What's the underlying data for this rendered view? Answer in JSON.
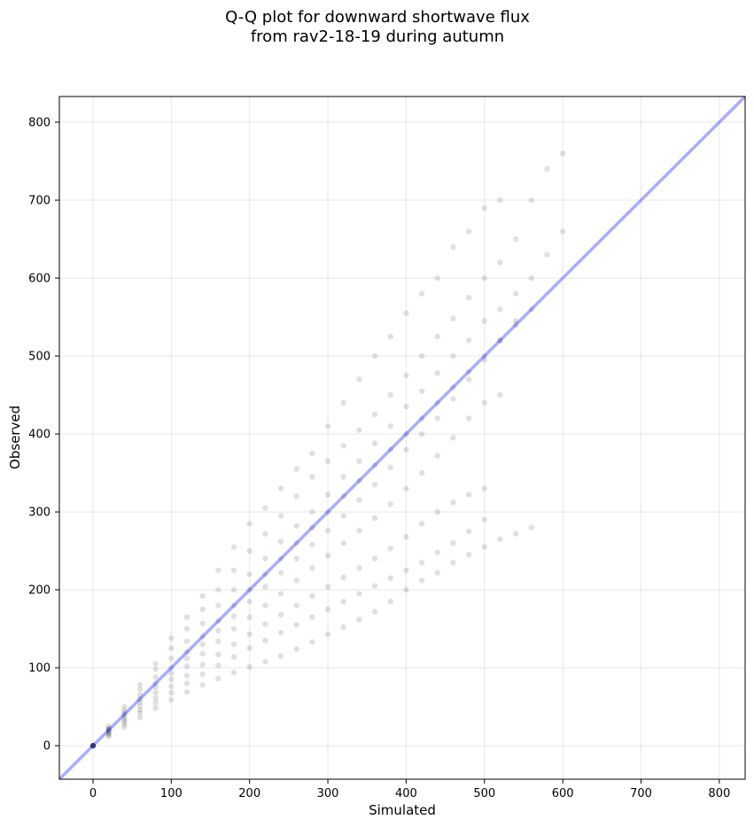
{
  "chart_data": {
    "type": "scatter",
    "title": [
      "Q-Q plot for downward shortwave flux",
      "from rav2-18-19 during autumn"
    ],
    "xlabel": "Simulated",
    "ylabel": "Observed",
    "xlim": [
      -43,
      833
    ],
    "ylim": [
      -43,
      833
    ],
    "xticks": [
      0,
      100,
      200,
      300,
      400,
      500,
      600,
      700,
      800
    ],
    "yticks": [
      0,
      100,
      200,
      300,
      400,
      500,
      600,
      700,
      800
    ],
    "xtick_labels": [
      "0",
      "100",
      "200",
      "300",
      "400",
      "500",
      "600",
      "700",
      "800"
    ],
    "ytick_labels": [
      "0",
      "100",
      "200",
      "300",
      "400",
      "500",
      "600",
      "700",
      "800"
    ],
    "grid": true,
    "reference_line": {
      "kind": "y=x",
      "color": "#0000ff",
      "alpha": 0.33
    },
    "point_color": "#000000",
    "point_alpha": 0.12,
    "series": [
      {
        "values": [
          [
            0,
            0
          ],
          [
            20,
            25
          ],
          [
            40,
            50
          ],
          [
            60,
            78
          ],
          [
            80,
            105
          ],
          [
            100,
            138
          ],
          [
            120,
            165
          ],
          [
            140,
            192
          ],
          [
            160,
            225
          ],
          [
            180,
            255
          ],
          [
            200,
            285
          ],
          [
            220,
            305
          ],
          [
            240,
            330
          ],
          [
            260,
            355
          ],
          [
            280,
            375
          ],
          [
            300,
            410
          ],
          [
            320,
            440
          ],
          [
            340,
            470
          ],
          [
            360,
            500
          ],
          [
            380,
            525
          ],
          [
            400,
            555
          ],
          [
            420,
            580
          ],
          [
            440,
            600
          ],
          [
            460,
            640
          ],
          [
            480,
            660
          ],
          [
            500,
            690
          ],
          [
            520,
            700
          ]
        ]
      },
      {
        "values": [
          [
            0,
            0
          ],
          [
            20,
            22
          ],
          [
            40,
            45
          ],
          [
            60,
            72
          ],
          [
            80,
            98
          ],
          [
            100,
            125
          ],
          [
            120,
            150
          ],
          [
            140,
            175
          ],
          [
            160,
            200
          ],
          [
            180,
            225
          ],
          [
            200,
            250
          ],
          [
            220,
            272
          ],
          [
            240,
            295
          ],
          [
            260,
            320
          ],
          [
            280,
            345
          ],
          [
            300,
            365
          ],
          [
            320,
            385
          ],
          [
            340,
            405
          ],
          [
            360,
            425
          ],
          [
            380,
            450
          ],
          [
            400,
            475
          ],
          [
            420,
            500
          ],
          [
            440,
            525
          ],
          [
            460,
            548
          ],
          [
            480,
            575
          ],
          [
            500,
            600
          ],
          [
            520,
            620
          ],
          [
            540,
            650
          ],
          [
            560,
            700
          ],
          [
            580,
            740
          ],
          [
            600,
            760
          ]
        ]
      },
      {
        "values": [
          [
            0,
            0
          ],
          [
            20,
            21
          ],
          [
            40,
            42
          ],
          [
            60,
            65
          ],
          [
            80,
            88
          ],
          [
            100,
            112
          ],
          [
            120,
            134
          ],
          [
            140,
            157
          ],
          [
            160,
            180
          ],
          [
            180,
            200
          ],
          [
            200,
            220
          ],
          [
            220,
            240
          ],
          [
            240,
            262
          ],
          [
            260,
            282
          ],
          [
            280,
            300
          ],
          [
            300,
            322
          ],
          [
            320,
            345
          ],
          [
            340,
            365
          ],
          [
            360,
            388
          ],
          [
            380,
            410
          ],
          [
            400,
            435
          ],
          [
            420,
            455
          ],
          [
            440,
            478
          ],
          [
            460,
            500
          ],
          [
            480,
            520
          ],
          [
            500,
            545
          ],
          [
            520,
            560
          ],
          [
            540,
            580
          ],
          [
            560,
            600
          ],
          [
            580,
            630
          ],
          [
            600,
            660
          ]
        ]
      },
      {
        "values": [
          [
            0,
            0
          ],
          [
            20,
            20
          ],
          [
            40,
            40
          ],
          [
            60,
            60
          ],
          [
            80,
            80
          ],
          [
            100,
            100
          ],
          [
            120,
            120
          ],
          [
            140,
            140
          ],
          [
            160,
            160
          ],
          [
            180,
            180
          ],
          [
            200,
            200
          ],
          [
            220,
            220
          ],
          [
            240,
            240
          ],
          [
            260,
            260
          ],
          [
            280,
            280
          ],
          [
            300,
            300
          ],
          [
            320,
            320
          ],
          [
            340,
            340
          ],
          [
            360,
            360
          ],
          [
            380,
            380
          ],
          [
            400,
            400
          ],
          [
            420,
            420
          ],
          [
            440,
            440
          ],
          [
            460,
            460
          ],
          [
            480,
            480
          ],
          [
            500,
            500
          ],
          [
            520,
            520
          ],
          [
            540,
            540
          ],
          [
            560,
            560
          ]
        ]
      },
      {
        "values": [
          [
            0,
            0
          ],
          [
            20,
            19
          ],
          [
            40,
            37
          ],
          [
            60,
            56
          ],
          [
            80,
            75
          ],
          [
            100,
            93
          ],
          [
            120,
            112
          ],
          [
            140,
            130
          ],
          [
            160,
            148
          ],
          [
            180,
            166
          ],
          [
            200,
            185
          ],
          [
            220,
            204
          ],
          [
            240,
            222
          ],
          [
            260,
            240
          ],
          [
            280,
            258
          ],
          [
            300,
            276
          ],
          [
            320,
            295
          ],
          [
            340,
            315
          ],
          [
            360,
            335
          ],
          [
            380,
            357
          ],
          [
            400,
            380
          ],
          [
            420,
            400
          ],
          [
            440,
            420
          ],
          [
            460,
            445
          ],
          [
            480,
            470
          ],
          [
            500,
            495
          ],
          [
            520,
            520
          ],
          [
            540,
            545
          ]
        ]
      },
      {
        "values": [
          [
            0,
            0
          ],
          [
            20,
            17
          ],
          [
            40,
            34
          ],
          [
            60,
            51
          ],
          [
            80,
            68
          ],
          [
            100,
            85
          ],
          [
            120,
            102
          ],
          [
            140,
            118
          ],
          [
            160,
            134
          ],
          [
            180,
            150
          ],
          [
            200,
            165
          ],
          [
            220,
            180
          ],
          [
            240,
            195
          ],
          [
            260,
            212
          ],
          [
            280,
            228
          ],
          [
            300,
            244
          ],
          [
            320,
            260
          ],
          [
            340,
            276
          ],
          [
            360,
            292
          ],
          [
            380,
            310
          ],
          [
            400,
            330
          ],
          [
            420,
            350
          ],
          [
            440,
            372
          ],
          [
            460,
            395
          ],
          [
            480,
            420
          ],
          [
            500,
            440
          ],
          [
            520,
            450
          ]
        ]
      },
      {
        "values": [
          [
            0,
            0
          ],
          [
            20,
            16
          ],
          [
            40,
            31
          ],
          [
            60,
            46
          ],
          [
            80,
            61
          ],
          [
            100,
            76
          ],
          [
            120,
            90
          ],
          [
            140,
            104
          ],
          [
            160,
            117
          ],
          [
            180,
            130
          ],
          [
            200,
            143
          ],
          [
            220,
            156
          ],
          [
            240,
            168
          ],
          [
            260,
            180
          ],
          [
            280,
            192
          ],
          [
            300,
            204
          ],
          [
            320,
            216
          ],
          [
            340,
            228
          ],
          [
            360,
            240
          ],
          [
            380,
            253
          ],
          [
            400,
            268
          ],
          [
            420,
            285
          ],
          [
            440,
            300
          ],
          [
            460,
            312
          ],
          [
            480,
            322
          ],
          [
            500,
            330
          ]
        ]
      },
      {
        "values": [
          [
            0,
            0
          ],
          [
            20,
            14
          ],
          [
            40,
            28
          ],
          [
            60,
            42
          ],
          [
            80,
            55
          ],
          [
            100,
            68
          ],
          [
            120,
            80
          ],
          [
            140,
            92
          ],
          [
            160,
            103
          ],
          [
            180,
            114
          ],
          [
            200,
            125
          ],
          [
            220,
            135
          ],
          [
            240,
            145
          ],
          [
            260,
            155
          ],
          [
            280,
            165
          ],
          [
            300,
            175
          ],
          [
            320,
            185
          ],
          [
            340,
            195
          ],
          [
            360,
            205
          ],
          [
            380,
            215
          ],
          [
            400,
            225
          ],
          [
            420,
            235
          ],
          [
            440,
            248
          ],
          [
            460,
            260
          ],
          [
            480,
            275
          ],
          [
            500,
            290
          ]
        ]
      },
      {
        "values": [
          [
            0,
            0
          ],
          [
            20,
            12
          ],
          [
            40,
            24
          ],
          [
            60,
            36
          ],
          [
            80,
            48
          ],
          [
            100,
            59
          ],
          [
            120,
            69
          ],
          [
            140,
            78
          ],
          [
            160,
            86
          ],
          [
            180,
            94
          ],
          [
            200,
            101
          ],
          [
            220,
            108
          ],
          [
            240,
            115
          ],
          [
            260,
            124
          ],
          [
            280,
            133
          ],
          [
            300,
            143
          ],
          [
            320,
            152
          ],
          [
            340,
            162
          ],
          [
            360,
            172
          ],
          [
            380,
            185
          ],
          [
            400,
            200
          ],
          [
            420,
            212
          ],
          [
            440,
            222
          ],
          [
            460,
            235
          ],
          [
            480,
            245
          ],
          [
            500,
            255
          ],
          [
            520,
            265
          ],
          [
            540,
            272
          ],
          [
            560,
            280
          ]
        ]
      }
    ]
  }
}
